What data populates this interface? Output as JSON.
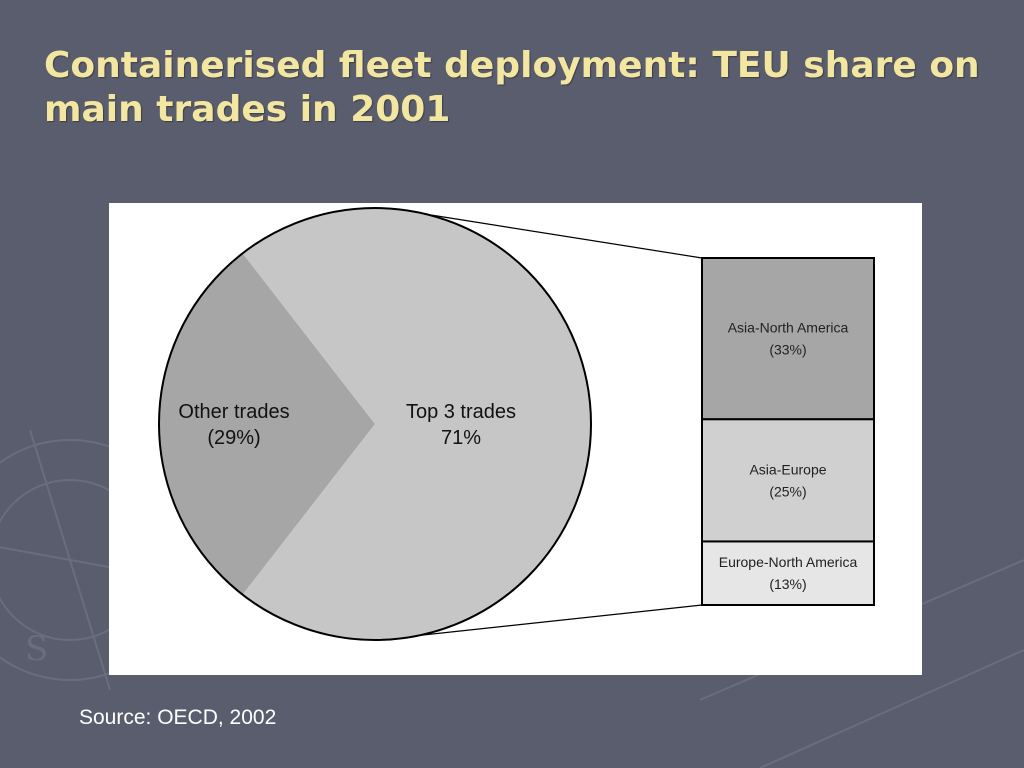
{
  "slide": {
    "title": "Containerised fleet deployment: TEU share on main trades in 2001",
    "source": "Source: OECD, 2002"
  },
  "colors": {
    "background": "#5a5d6e",
    "title": "#f2e6a0",
    "pie_other": "#a6a6a6",
    "pie_top3": "#c6c6c6",
    "bar_asia_north_america": "#a6a6a6",
    "bar_asia_europe": "#d0d0d0",
    "bar_europe_north_america": "#e6e6e6"
  },
  "chart_data": {
    "type": "pie",
    "subtype": "bar-of-pie",
    "pie": {
      "slices": [
        {
          "name": "Other trades",
          "label": "Other trades",
          "value_label": "(29%)",
          "value": 29
        },
        {
          "name": "Top 3 trades",
          "label": "Top 3 trades",
          "value_label": "71%",
          "value": 71
        }
      ]
    },
    "breakdown": {
      "of": "Top 3 trades",
      "segments": [
        {
          "name": "Asia-North America",
          "label": "Asia-North America",
          "value_label": "(33%)",
          "value": 33
        },
        {
          "name": "Asia-Europe",
          "label": "Asia-Europe",
          "value_label": "(25%)",
          "value": 25
        },
        {
          "name": "Europe-North America",
          "label": "Europe-North America",
          "value_label": "(13%)",
          "value": 13
        }
      ]
    }
  }
}
